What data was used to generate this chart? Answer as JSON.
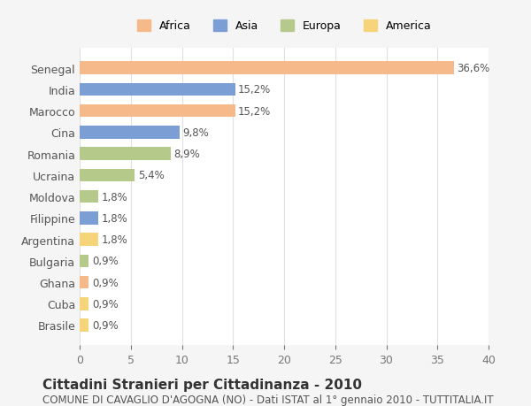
{
  "categories": [
    "Brasile",
    "Cuba",
    "Ghana",
    "Bulgaria",
    "Argentina",
    "Filippine",
    "Moldova",
    "Ucraina",
    "Romania",
    "Cina",
    "Marocco",
    "India",
    "Senegal"
  ],
  "values": [
    0.9,
    0.9,
    0.9,
    0.9,
    1.8,
    1.8,
    1.8,
    5.4,
    8.9,
    9.8,
    15.2,
    15.2,
    36.6
  ],
  "bar_color_map": {
    "Senegal": "#f5b98a",
    "India": "#7b9fd4",
    "Marocco": "#f5b98a",
    "Cina": "#7b9fd4",
    "Romania": "#b5c98a",
    "Ucraina": "#b5c98a",
    "Moldova": "#b5c98a",
    "Filippine": "#7b9fd4",
    "Argentina": "#f5d47a",
    "Bulgaria": "#b5c98a",
    "Ghana": "#f5b98a",
    "Cuba": "#f5d47a",
    "Brasile": "#f5d47a"
  },
  "labels": [
    "0,9%",
    "0,9%",
    "0,9%",
    "0,9%",
    "1,8%",
    "1,8%",
    "1,8%",
    "5,4%",
    "8,9%",
    "9,8%",
    "15,2%",
    "15,2%",
    "36,6%"
  ],
  "xlim": [
    0,
    40
  ],
  "xticks": [
    0,
    5,
    10,
    15,
    20,
    25,
    30,
    35,
    40
  ],
  "title": "Cittadini Stranieri per Cittadinanza - 2010",
  "subtitle": "COMUNE DI CAVAGLIO D'AGOGNA (NO) - Dati ISTAT al 1° gennaio 2010 - TUTTITALIA.IT",
  "legend_labels": [
    "Africa",
    "Asia",
    "Europa",
    "America"
  ],
  "legend_colors": [
    "#f5b98a",
    "#7b9fd4",
    "#b5c98a",
    "#f5d47a"
  ],
  "background_color": "#f5f5f5",
  "plot_background": "#ffffff",
  "grid_color": "#e0e0e0",
  "title_fontsize": 11,
  "subtitle_fontsize": 8.5,
  "tick_fontsize": 9,
  "bar_label_fontsize": 8.5
}
